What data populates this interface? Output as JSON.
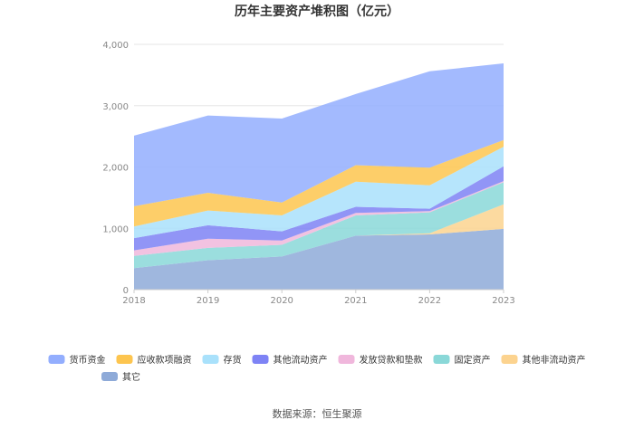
{
  "chart_data": {
    "type": "area",
    "stacked": true,
    "title": "历年主要资产堆积图（亿元）",
    "x": [
      "2018",
      "2019",
      "2020",
      "2021",
      "2022",
      "2023"
    ],
    "ylim": [
      0,
      4000
    ],
    "yticks": [
      "0",
      "1,000",
      "2,000",
      "3,000",
      "4,000"
    ],
    "grid": true,
    "legend_position": "bottom",
    "series": [
      {
        "name": "其它",
        "color": "#8eaad8",
        "values": [
          350,
          480,
          540,
          880,
          900,
          990
        ]
      },
      {
        "name": "其他非流动资产",
        "color": "#fcd38f",
        "values": [
          0,
          0,
          0,
          0,
          20,
          400
        ]
      },
      {
        "name": "固定资产",
        "color": "#8ad8d8",
        "values": [
          200,
          200,
          190,
          330,
          340,
          360
        ]
      },
      {
        "name": "发放贷款和垫款",
        "color": "#f0b7dc",
        "values": [
          90,
          150,
          70,
          40,
          20,
          20
        ]
      },
      {
        "name": "其他流动资产",
        "color": "#7e83f5",
        "values": [
          200,
          220,
          150,
          100,
          40,
          240
        ]
      },
      {
        "name": "存货",
        "color": "#a9e1fb",
        "values": [
          190,
          240,
          260,
          410,
          380,
          320
        ]
      },
      {
        "name": "应收款项融资",
        "color": "#fdc54f",
        "values": [
          330,
          290,
          210,
          270,
          290,
          110
        ]
      },
      {
        "name": "货币资金",
        "color": "#93aefe",
        "values": [
          1150,
          1260,
          1370,
          1160,
          1570,
          1250
        ]
      }
    ],
    "legend_order": [
      "货币资金",
      "应收款项融资",
      "存货",
      "其他流动资产",
      "发放贷款和垫款",
      "固定资产",
      "其他非流动资产",
      "其它"
    ]
  },
  "source_text": "数据来源：恒生聚源"
}
